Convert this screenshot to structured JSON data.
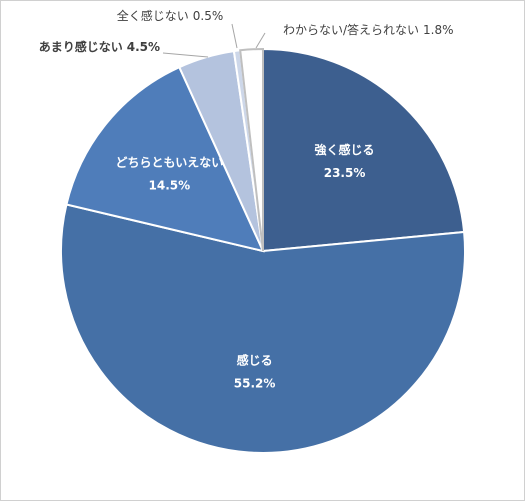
{
  "chart_data": {
    "type": "pie",
    "categories": [
      "強く感じる",
      "感じる",
      "どちらともいえない",
      "あまり感じない",
      "全く感じない",
      "わからない/答えられない"
    ],
    "values": [
      23.5,
      55.2,
      14.5,
      4.5,
      0.5,
      1.8
    ],
    "value_labels": [
      "23.5%",
      "55.2%",
      "14.5%",
      "4.5%",
      "0.5%",
      "1.8%"
    ],
    "colors": [
      "#3d5f8f",
      "#4570a6",
      "#4f7dba",
      "#b4c3de",
      "#cdd7e9",
      "#ffffff"
    ]
  }
}
